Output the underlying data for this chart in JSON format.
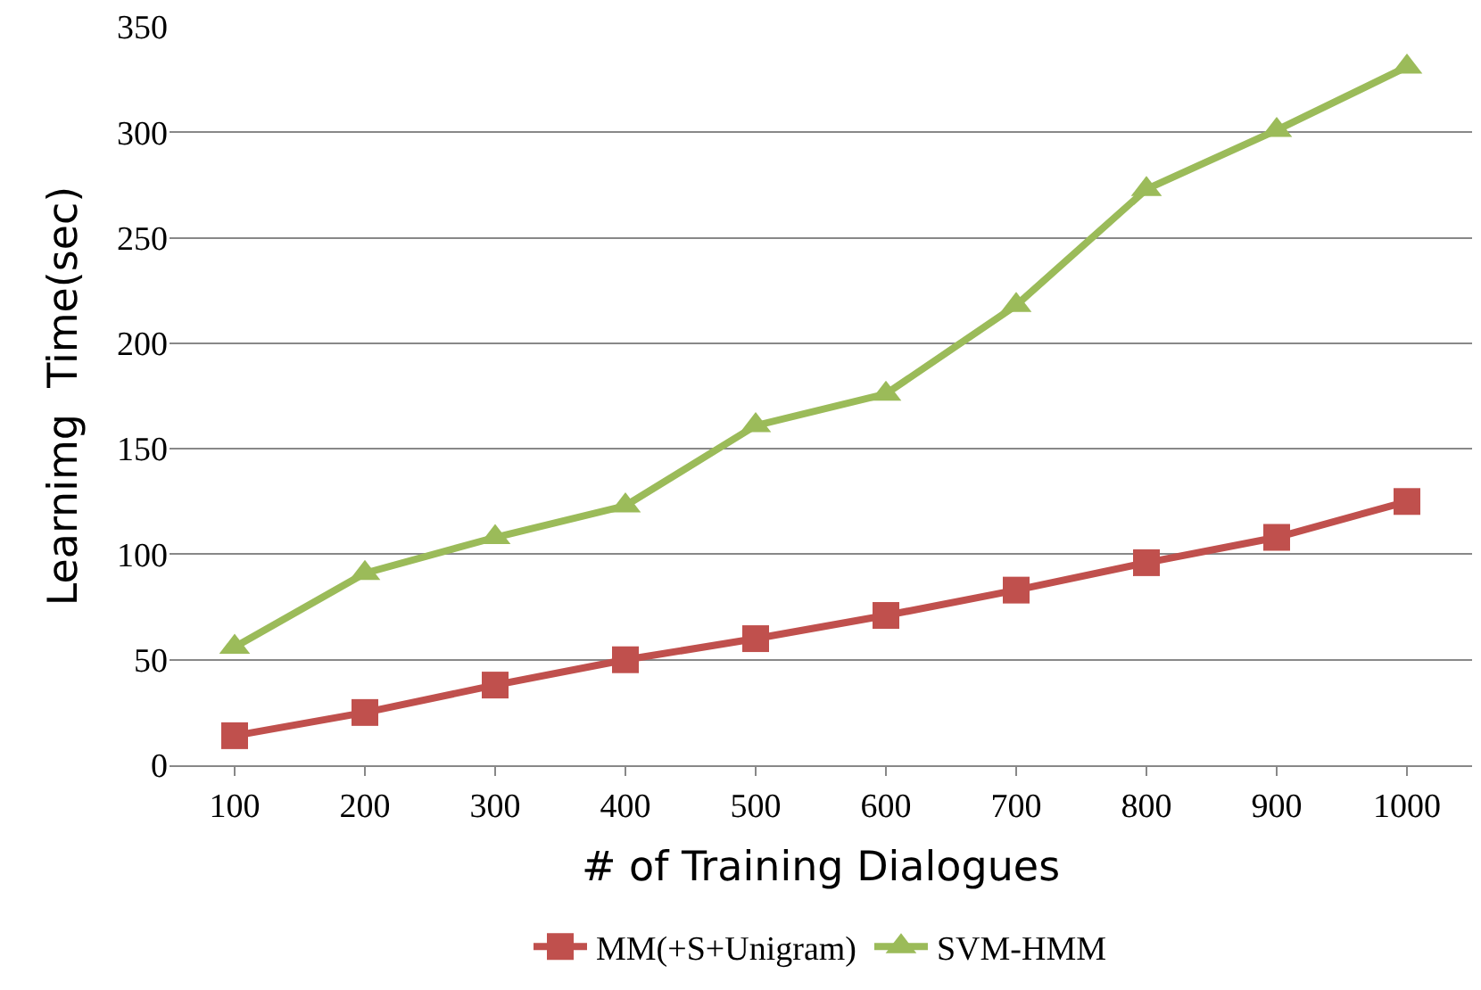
{
  "chart_data": {
    "type": "line",
    "xlabel": "# of Training Dialogues",
    "ylabel": "Learnimg  Time(sec)",
    "categories": [
      "100",
      "200",
      "300",
      "400",
      "500",
      "600",
      "700",
      "800",
      "900",
      "1000"
    ],
    "series": [
      {
        "name": "MM(+S+Unigram)",
        "color": "#c0504d",
        "marker": "square",
        "values": [
          14,
          25,
          38,
          50,
          60,
          71,
          83,
          96,
          108,
          125
        ]
      },
      {
        "name": "SVM-HMM",
        "color": "#9bbb59",
        "marker": "triangle",
        "values": [
          56,
          91,
          108,
          123,
          161,
          176,
          218,
          273,
          301,
          331
        ]
      }
    ],
    "ylim": [
      0,
      350
    ],
    "yticks": [
      0,
      50,
      100,
      150,
      200,
      250,
      300,
      350
    ],
    "grid": "y",
    "legend": "bottom",
    "line_style": "solid"
  }
}
